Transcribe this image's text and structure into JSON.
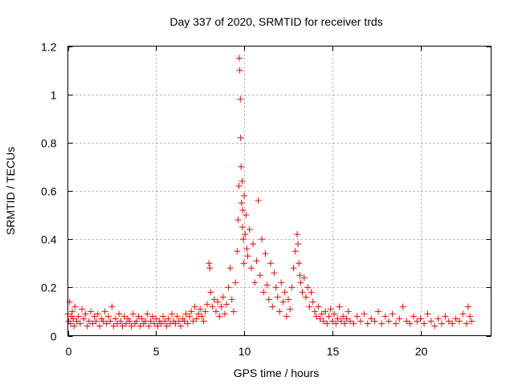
{
  "chart_data": {
    "type": "scatter",
    "title": "Day 337 of 2020, SRMTID for receiver trds",
    "xlabel": "GPS time / hours",
    "ylabel": "SRMTID / TECUs",
    "xlim": [
      0,
      24
    ],
    "ylim": [
      0,
      1.2
    ],
    "xticks": [
      "0",
      "5",
      "10",
      "15",
      "20"
    ],
    "xtick_values": [
      0,
      5,
      10,
      15,
      20
    ],
    "yticks": [
      "0",
      "0.2",
      "0.4",
      "0.6",
      "0.8",
      "1",
      "1.2"
    ],
    "ytick_values": [
      0,
      0.2,
      0.4,
      0.6,
      0.8,
      1.0,
      1.2
    ],
    "grid": true,
    "marker": "+",
    "color": "#ff0000",
    "series": [
      {
        "name": "SRMTID",
        "x": [
          0.0,
          0.05,
          0.1,
          0.15,
          0.2,
          0.25,
          0.3,
          0.35,
          0.4,
          0.5,
          0.6,
          0.7,
          0.8,
          0.9,
          1.0,
          1.1,
          1.2,
          1.3,
          1.4,
          1.5,
          1.6,
          1.7,
          1.8,
          1.9,
          2.0,
          2.1,
          2.2,
          2.3,
          2.4,
          2.5,
          2.6,
          2.7,
          2.8,
          2.9,
          3.0,
          3.1,
          3.2,
          3.3,
          3.4,
          3.5,
          3.6,
          3.7,
          3.8,
          3.9,
          4.0,
          4.1,
          4.2,
          4.3,
          4.4,
          4.5,
          4.6,
          4.7,
          4.8,
          4.9,
          5.0,
          5.1,
          5.2,
          5.3,
          5.4,
          5.5,
          5.6,
          5.7,
          5.8,
          5.9,
          6.0,
          6.1,
          6.2,
          6.3,
          6.4,
          6.5,
          6.6,
          6.7,
          6.8,
          6.9,
          7.0,
          7.1,
          7.2,
          7.3,
          7.4,
          7.5,
          7.6,
          7.7,
          7.8,
          7.9,
          8.0,
          8.05,
          8.1,
          8.2,
          8.3,
          8.4,
          8.5,
          8.6,
          8.7,
          8.8,
          8.9,
          9.0,
          9.1,
          9.2,
          9.3,
          9.4,
          9.5,
          9.6,
          9.65,
          9.7,
          9.72,
          9.75,
          9.78,
          9.8,
          9.82,
          9.85,
          9.88,
          9.9,
          9.92,
          9.95,
          9.98,
          10.0,
          10.05,
          10.1,
          10.15,
          10.2,
          10.3,
          10.4,
          10.5,
          10.6,
          10.7,
          10.8,
          10.9,
          11.0,
          11.1,
          11.2,
          11.3,
          11.4,
          11.5,
          11.6,
          11.7,
          11.8,
          11.9,
          12.0,
          12.1,
          12.2,
          12.3,
          12.4,
          12.5,
          12.6,
          12.7,
          12.8,
          12.9,
          13.0,
          13.05,
          13.1,
          13.15,
          13.2,
          13.3,
          13.4,
          13.5,
          13.6,
          13.7,
          13.8,
          13.9,
          14.0,
          14.1,
          14.2,
          14.3,
          14.4,
          14.5,
          14.6,
          14.7,
          14.8,
          14.9,
          15.0,
          15.1,
          15.2,
          15.3,
          15.4,
          15.5,
          15.6,
          15.7,
          15.8,
          15.9,
          16.0,
          16.2,
          16.4,
          16.6,
          16.8,
          17.0,
          17.2,
          17.4,
          17.6,
          17.8,
          18.0,
          18.2,
          18.4,
          18.6,
          18.8,
          19.0,
          19.2,
          19.4,
          19.6,
          19.8,
          20.0,
          20.2,
          20.4,
          20.6,
          20.8,
          21.0,
          21.2,
          21.4,
          21.6,
          21.8,
          22.0,
          22.2,
          22.4,
          22.6,
          22.7,
          22.8,
          22.9
        ],
        "y": [
          0.09,
          0.06,
          0.14,
          0.05,
          0.08,
          0.1,
          0.07,
          0.04,
          0.12,
          0.06,
          0.08,
          0.05,
          0.11,
          0.07,
          0.09,
          0.04,
          0.06,
          0.1,
          0.05,
          0.08,
          0.06,
          0.09,
          0.04,
          0.07,
          0.06,
          0.1,
          0.05,
          0.08,
          0.06,
          0.12,
          0.04,
          0.07,
          0.05,
          0.09,
          0.06,
          0.04,
          0.08,
          0.05,
          0.07,
          0.06,
          0.04,
          0.09,
          0.05,
          0.06,
          0.08,
          0.04,
          0.07,
          0.05,
          0.06,
          0.09,
          0.04,
          0.06,
          0.08,
          0.05,
          0.07,
          0.04,
          0.06,
          0.05,
          0.08,
          0.06,
          0.04,
          0.07,
          0.05,
          0.09,
          0.06,
          0.05,
          0.08,
          0.06,
          0.04,
          0.07,
          0.06,
          0.09,
          0.05,
          0.08,
          0.1,
          0.06,
          0.12,
          0.07,
          0.09,
          0.11,
          0.08,
          0.06,
          0.1,
          0.13,
          0.3,
          0.28,
          0.18,
          0.12,
          0.15,
          0.1,
          0.14,
          0.08,
          0.12,
          0.16,
          0.09,
          0.13,
          0.2,
          0.28,
          0.15,
          0.1,
          0.22,
          0.35,
          0.48,
          0.62,
          1.15,
          1.1,
          0.98,
          0.82,
          0.7,
          0.55,
          0.64,
          0.45,
          0.52,
          0.4,
          0.3,
          0.58,
          0.42,
          0.5,
          0.36,
          0.33,
          0.44,
          0.28,
          0.38,
          0.22,
          0.31,
          0.56,
          0.25,
          0.4,
          0.18,
          0.34,
          0.21,
          0.15,
          0.3,
          0.12,
          0.26,
          0.2,
          0.16,
          0.1,
          0.22,
          0.14,
          0.18,
          0.08,
          0.15,
          0.11,
          0.2,
          0.28,
          0.35,
          0.42,
          0.38,
          0.3,
          0.25,
          0.22,
          0.18,
          0.24,
          0.16,
          0.2,
          0.12,
          0.18,
          0.14,
          0.1,
          0.08,
          0.12,
          0.07,
          0.09,
          0.06,
          0.1,
          0.05,
          0.08,
          0.11,
          0.06,
          0.09,
          0.05,
          0.07,
          0.12,
          0.06,
          0.08,
          0.05,
          0.07,
          0.1,
          0.06,
          0.05,
          0.08,
          0.06,
          0.09,
          0.05,
          0.07,
          0.06,
          0.1,
          0.05,
          0.08,
          0.06,
          0.09,
          0.05,
          0.07,
          0.12,
          0.06,
          0.05,
          0.08,
          0.06,
          0.07,
          0.05,
          0.09,
          0.06,
          0.04,
          0.07,
          0.05,
          0.08,
          0.06,
          0.05,
          0.07,
          0.06,
          0.09,
          0.05,
          0.12,
          0.08,
          0.06
        ]
      }
    ]
  }
}
